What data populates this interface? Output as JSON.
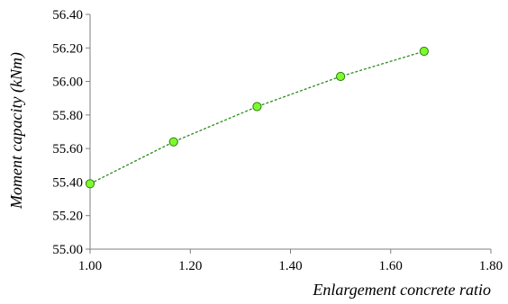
{
  "chart_data": {
    "type": "scatter",
    "title": "",
    "xlabel": "Enlargement concrete ratio",
    "ylabel": "Moment capacity (kNm)",
    "xlim": [
      1.0,
      1.8
    ],
    "ylim": [
      55.0,
      56.4
    ],
    "xticks": [
      "1.00",
      "1.20",
      "1.40",
      "1.60",
      "1.80"
    ],
    "yticks": [
      "55.00",
      "55.20",
      "55.40",
      "55.60",
      "55.80",
      "56.00",
      "56.20",
      "56.40"
    ],
    "grid": false,
    "legend": "none",
    "series": [
      {
        "x": [
          1.0,
          1.1667,
          1.3333,
          1.5,
          1.6667
        ],
        "y": [
          55.39,
          55.64,
          55.85,
          56.03,
          56.18
        ],
        "marker_color": "#7CFC2A",
        "marker_edge_color": "#2E7D16",
        "trendline": "dashed",
        "trendline_color": "#2E8B1E"
      }
    ],
    "axis_color": "#7F7F7F"
  }
}
